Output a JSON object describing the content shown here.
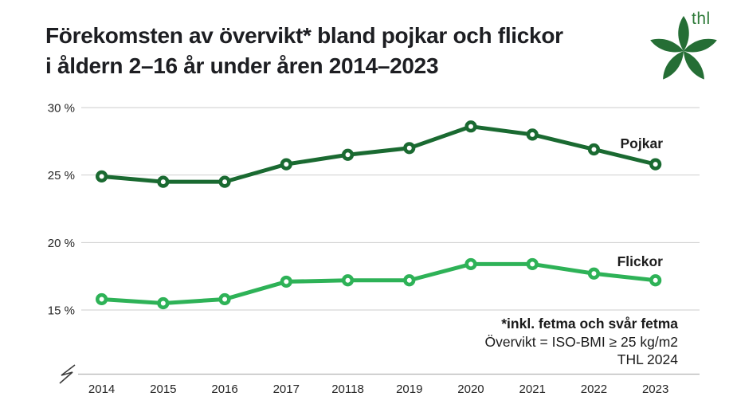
{
  "title": {
    "line1": "Förekomsten av övervikt* bland pojkar och flickor",
    "line2": "i åldern 2–16 år under åren 2014–2023"
  },
  "logo": {
    "text": "thl"
  },
  "footnote": {
    "line1": "*inkl. fetma och svår fetma",
    "line2": "Övervikt = ISO-BMI ≥ 25 kg/m2",
    "line3": "THL 2024"
  },
  "colors": {
    "boys_line": "#1a6a31",
    "girls_line": "#2eb257",
    "logo_green": "#256e35",
    "grid_gray": "#cecece",
    "text_dark": "#1d1e22"
  },
  "chart_data": {
    "type": "line",
    "title": "Förekomsten av övervikt* bland pojkar och flickor i åldern 2–16 år under åren 2014–2023",
    "categories": [
      "2014",
      "2015",
      "2016",
      "2017",
      "20118",
      "2019",
      "2020",
      "2021",
      "2022",
      "2023"
    ],
    "series": [
      {
        "name": "Pojkar",
        "color": "#1a6a31",
        "values": [
          24.9,
          24.5,
          24.5,
          25.8,
          26.5,
          27.0,
          28.6,
          28.0,
          26.9,
          25.8
        ]
      },
      {
        "name": "Flickor",
        "color": "#2eb257",
        "values": [
          15.8,
          15.5,
          15.8,
          17.1,
          17.2,
          17.2,
          18.4,
          18.4,
          17.7,
          17.2
        ]
      }
    ],
    "yticks": [
      30,
      25,
      20,
      15
    ],
    "ytick_suffix": " %",
    "ylim": [
      15,
      30
    ],
    "grid": true,
    "axis_break": true,
    "legend": "inline-labels",
    "annotations": [
      "*inkl. fetma och svår fetma",
      "Övervikt = ISO-BMI ≥ 25 kg/m2",
      "THL 2024"
    ]
  }
}
